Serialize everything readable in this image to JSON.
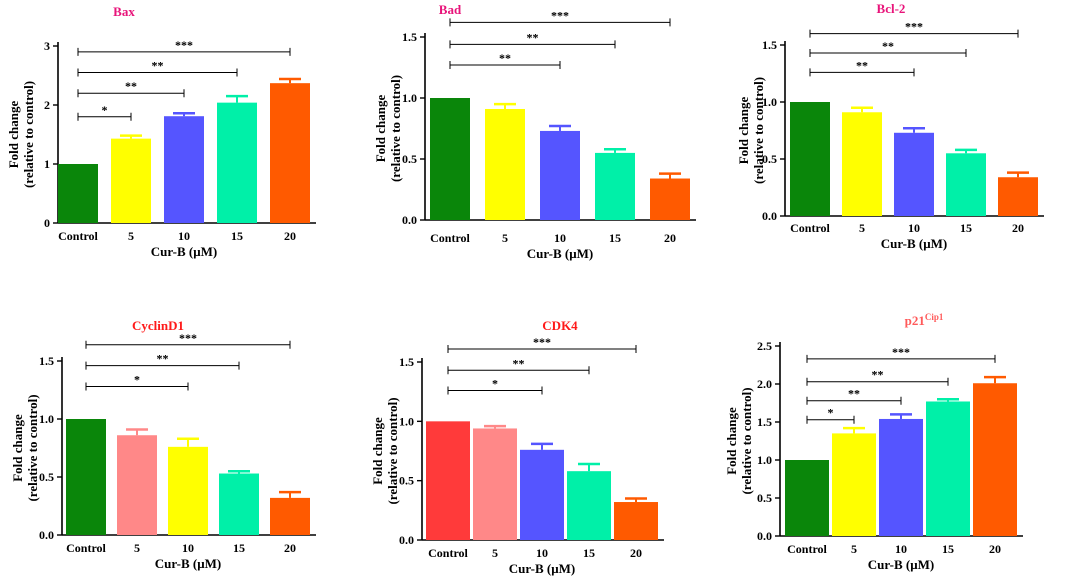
{
  "chart_data": [
    {
      "type": "bar",
      "title": "Bax",
      "title_sup": "",
      "title_color": "#e8147a",
      "categories": [
        "Control",
        "5",
        "10",
        "15",
        "20"
      ],
      "values": [
        1.0,
        1.43,
        1.81,
        2.04,
        2.37
      ],
      "errors": [
        0.0,
        0.05,
        0.05,
        0.11,
        0.07
      ],
      "colors": [
        "#0a860a",
        "#ffff00",
        "#5555ff",
        "#00f0a8",
        "#ff5a00"
      ],
      "ylim": [
        0,
        3
      ],
      "yticks": [
        "0",
        "1",
        "2",
        "3"
      ],
      "ytick_values": [
        0,
        1,
        2,
        3
      ],
      "ylabel": "Fold change",
      "ylabel2": "(relative to control)",
      "xlabel": "Cur-B (μM)",
      "significance": [
        {
          "from": 0,
          "to": 1,
          "label": "*",
          "y": 1.8
        },
        {
          "from": 0,
          "to": 2,
          "label": "**",
          "y": 2.2
        },
        {
          "from": 0,
          "to": 3,
          "label": "**",
          "y": 2.55
        },
        {
          "from": 0,
          "to": 4,
          "label": "***",
          "y": 2.9
        }
      ]
    },
    {
      "type": "bar",
      "title": "Bad",
      "title_sup": "",
      "title_color": "#e8147a",
      "categories": [
        "Control",
        "5",
        "10",
        "15",
        "20"
      ],
      "values": [
        1.0,
        0.91,
        0.73,
        0.55,
        0.34
      ],
      "errors": [
        0.0,
        0.04,
        0.04,
        0.03,
        0.04
      ],
      "colors": [
        "#0a860a",
        "#ffff00",
        "#5555ff",
        "#00f0a8",
        "#ff5a00"
      ],
      "ylim": [
        0,
        1.5
      ],
      "yticks": [
        "0.0",
        "0.5",
        "1.0",
        "1.5"
      ],
      "ytick_values": [
        0,
        0.5,
        1.0,
        1.5
      ],
      "ylabel": "Fold change",
      "ylabel2": "(relative to control)",
      "xlabel": "Cur-B (μM)",
      "significance": [
        {
          "from": 0,
          "to": 2,
          "label": "**",
          "y": 1.27
        },
        {
          "from": 0,
          "to": 3,
          "label": "**",
          "y": 1.44
        },
        {
          "from": 0,
          "to": 4,
          "label": "***",
          "y": 1.62
        }
      ]
    },
    {
      "type": "bar",
      "title": "Bcl-2",
      "title_sup": "",
      "title_color": "#e8147a",
      "categories": [
        "Control",
        "5",
        "10",
        "15",
        "20"
      ],
      "values": [
        1.0,
        0.91,
        0.73,
        0.55,
        0.34
      ],
      "errors": [
        0.0,
        0.04,
        0.04,
        0.03,
        0.04
      ],
      "colors": [
        "#0a860a",
        "#ffff00",
        "#5555ff",
        "#00f0a8",
        "#ff5a00"
      ],
      "ylim": [
        0,
        1.5
      ],
      "yticks": [
        "0.0",
        "0.5",
        "1.0",
        "1.5"
      ],
      "ytick_values": [
        0,
        0.5,
        1.0,
        1.5
      ],
      "ylabel": "Fold change",
      "ylabel2": "(relative to control)",
      "xlabel": "Cur-B (μM)",
      "significance": [
        {
          "from": 0,
          "to": 2,
          "label": "**",
          "y": 1.26
        },
        {
          "from": 0,
          "to": 3,
          "label": "**",
          "y": 1.43
        },
        {
          "from": 0,
          "to": 4,
          "label": "***",
          "y": 1.6
        }
      ]
    },
    {
      "type": "bar",
      "title": "CyclinD1",
      "title_sup": "",
      "title_color": "#ff1a1a",
      "categories": [
        "Control",
        "5",
        "10",
        "15",
        "20"
      ],
      "values": [
        1.0,
        0.86,
        0.76,
        0.53,
        0.32
      ],
      "errors": [
        0.0,
        0.05,
        0.07,
        0.02,
        0.05
      ],
      "colors": [
        "#0a860a",
        "#ff8888",
        "#ffff00",
        "#00f0a8",
        "#ff5a00"
      ],
      "ylim": [
        0,
        1.5
      ],
      "yticks": [
        "0.0",
        "0.5",
        "1.0",
        "1.5"
      ],
      "ytick_values": [
        0,
        0.5,
        1.0,
        1.5
      ],
      "ylabel": "Fold change",
      "ylabel2": "(relative to control)",
      "xlabel": "Cur-B (μM)",
      "significance": [
        {
          "from": 0,
          "to": 2,
          "label": "*",
          "y": 1.28
        },
        {
          "from": 0,
          "to": 3,
          "label": "**",
          "y": 1.46
        },
        {
          "from": 0,
          "to": 4,
          "label": "***",
          "y": 1.64
        }
      ]
    },
    {
      "type": "bar",
      "title": "CDK4",
      "title_sup": "",
      "title_color": "#ff1a1a",
      "categories": [
        "Control",
        "5",
        "10",
        "15",
        "20"
      ],
      "values": [
        1.0,
        0.94,
        0.76,
        0.58,
        0.32
      ],
      "errors": [
        0.0,
        0.02,
        0.05,
        0.06,
        0.03
      ],
      "colors": [
        "#ff3a3a",
        "#ff8888",
        "#5555ff",
        "#00f0a8",
        "#ff5a00"
      ],
      "ylim": [
        0,
        1.5
      ],
      "yticks": [
        "0.0",
        "0.5",
        "1.0",
        "1.5"
      ],
      "ytick_values": [
        0,
        0.5,
        1.0,
        1.5
      ],
      "ylabel": "Fold change",
      "ylabel2": "(relative to control)",
      "xlabel": "Cur-B (μM)",
      "significance": [
        {
          "from": 0,
          "to": 2,
          "label": "*",
          "y": 1.26
        },
        {
          "from": 0,
          "to": 3,
          "label": "**",
          "y": 1.43
        },
        {
          "from": 0,
          "to": 4,
          "label": "***",
          "y": 1.61
        }
      ]
    },
    {
      "type": "bar",
      "title": "p21",
      "title_sup": "Cip1",
      "title_color": "#ff5a5a",
      "categories": [
        "Control",
        "5",
        "10",
        "15",
        "20"
      ],
      "values": [
        1.0,
        1.35,
        1.54,
        1.77,
        2.01
      ],
      "errors": [
        0.0,
        0.07,
        0.06,
        0.03,
        0.08
      ],
      "colors": [
        "#0a860a",
        "#ffff00",
        "#5555ff",
        "#00f0a8",
        "#ff5a00"
      ],
      "ylim": [
        0,
        2.5
      ],
      "yticks": [
        "0.0",
        "0.5",
        "1.0",
        "1.5",
        "2.0",
        "2.5"
      ],
      "ytick_values": [
        0,
        0.5,
        1.0,
        1.5,
        2.0,
        2.5
      ],
      "ylabel": "Fold change",
      "ylabel2": "(relative to control)",
      "xlabel": "Cur-B (μM)",
      "significance": [
        {
          "from": 0,
          "to": 1,
          "label": "*",
          "y": 1.53
        },
        {
          "from": 0,
          "to": 2,
          "label": "**",
          "y": 1.78
        },
        {
          "from": 0,
          "to": 3,
          "label": "**",
          "y": 2.03
        },
        {
          "from": 0,
          "to": 4,
          "label": "***",
          "y": 2.33
        }
      ]
    }
  ]
}
